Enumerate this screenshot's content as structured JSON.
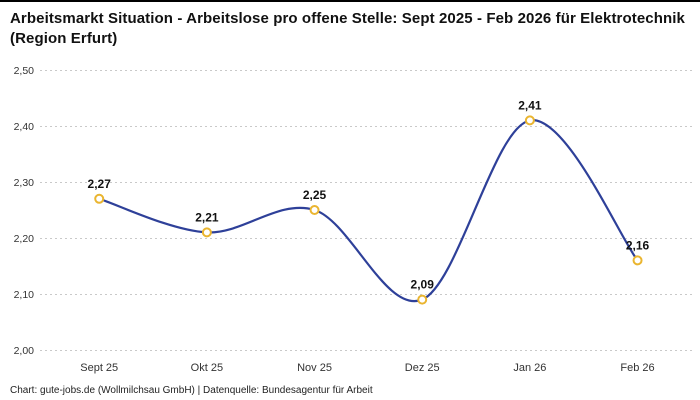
{
  "header": {
    "title": "Arbeitsmarkt Situation - Arbeitslose pro offene Stelle: Sept 2025 - Feb 2026 für Elektrotechnik (Region Erfurt)"
  },
  "footer": {
    "caption": "Chart: gute-jobs.de (Wollmilchsau GmbH) | Datenquelle: Bundesagentur für Arbeit"
  },
  "chart_data": {
    "type": "line",
    "title": "Arbeitsmarkt Situation - Arbeitslose pro offene Stelle: Sept 2025 - Feb 2026 für Elektrotechnik (Region Erfurt)",
    "categories": [
      "Sept 25",
      "Okt 25",
      "Nov 25",
      "Dez 25",
      "Jan 26",
      "Feb 26"
    ],
    "values": [
      2.27,
      2.21,
      2.25,
      2.09,
      2.41,
      2.16
    ],
    "point_labels": [
      "2,27",
      "2,21",
      "2,25",
      "2,09",
      "2,41",
      "2,16"
    ],
    "xlabel": "",
    "ylabel": "",
    "ylim": [
      2.0,
      2.5
    ],
    "yticks": [
      2.0,
      2.1,
      2.2,
      2.3,
      2.4,
      2.5
    ],
    "ytick_labels": [
      "2,00",
      "2,10",
      "2,20",
      "2,30",
      "2,40",
      "2,50"
    ],
    "grid": "horizontal-dotted",
    "legend": "none",
    "line_style": "smooth",
    "colors": {
      "line": "#2e4099",
      "marker_stroke": "#eab530",
      "marker_fill": "#ffffff",
      "grid": "#c9c9c9",
      "label": "#111111",
      "tick": "#333333"
    }
  }
}
